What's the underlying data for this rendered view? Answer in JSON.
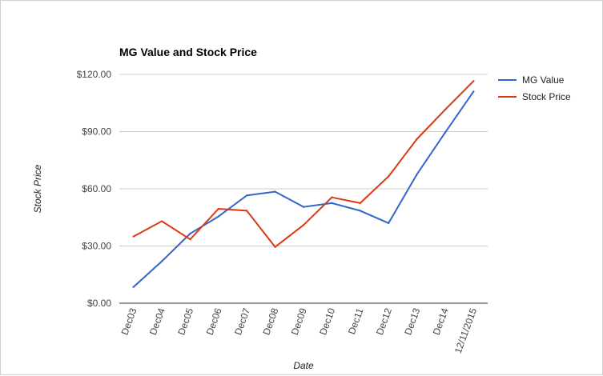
{
  "chart_data": {
    "type": "line",
    "title": "MG Value and Stock Price",
    "xlabel": "Date",
    "ylabel": "Stock Price",
    "categories": [
      "Dec03",
      "Dec04",
      "Dec05",
      "Dec06",
      "Dec07",
      "Dec08",
      "Dec09",
      "Dec10",
      "Dec11",
      "Dec12",
      "Dec13",
      "Dec14",
      "12/11/2015"
    ],
    "series": [
      {
        "name": "MG Value",
        "color": "#3366cc",
        "values": [
          8.5,
          22,
          36.5,
          45.5,
          56.5,
          58.5,
          50.5,
          52.5,
          48.5,
          42,
          67.5,
          89.5,
          111
        ]
      },
      {
        "name": "Stock Price",
        "color": "#dc3912",
        "values": [
          35,
          43,
          33.5,
          49.5,
          48.5,
          29.5,
          41,
          55.5,
          52.5,
          66.5,
          86,
          101.5,
          116.5
        ]
      }
    ],
    "ylim": [
      0,
      120
    ],
    "yticks": [
      {
        "value": 0,
        "label": "$0.00"
      },
      {
        "value": 30,
        "label": "$30.00"
      },
      {
        "value": 60,
        "label": "$60.00"
      },
      {
        "value": 90,
        "label": "$90.00"
      },
      {
        "value": 120,
        "label": "$120.00"
      }
    ],
    "grid": true,
    "legend_position": "right"
  }
}
